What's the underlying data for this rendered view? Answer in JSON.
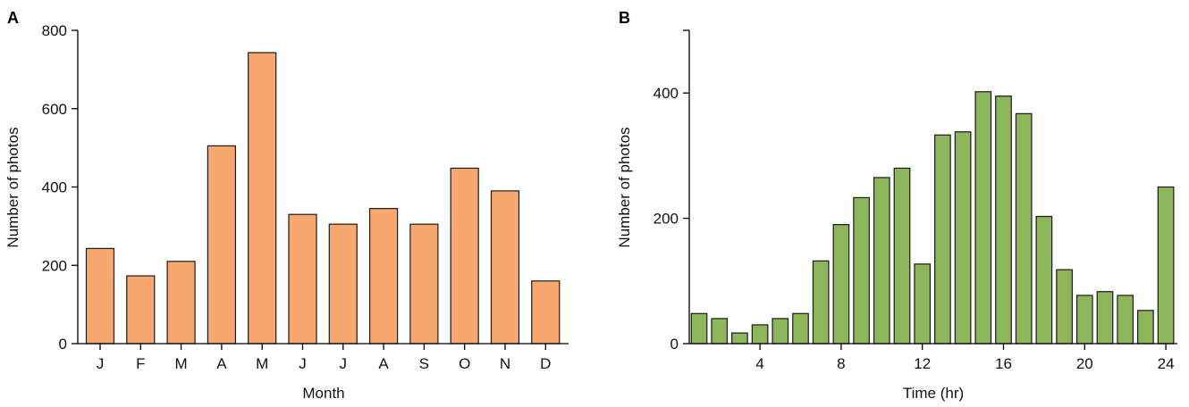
{
  "colors": {
    "panel_a_bar": "#f6a86f",
    "panel_b_bar": "#8db65a",
    "axis": "#000000"
  },
  "chart_data": [
    {
      "panel_label": "A",
      "type": "bar",
      "xlabel": "Month",
      "ylabel": "Number of photos",
      "ylim": [
        0,
        800
      ],
      "yticks": [
        0,
        200,
        400,
        600,
        800
      ],
      "categories": [
        "J",
        "F",
        "M",
        "A",
        "M",
        "J",
        "J",
        "A",
        "S",
        "O",
        "N",
        "D"
      ],
      "values": [
        243,
        173,
        210,
        505,
        743,
        330,
        305,
        345,
        305,
        448,
        390,
        160
      ],
      "grid": false
    },
    {
      "panel_label": "B",
      "type": "bar",
      "xlabel": "Time (hr)",
      "ylabel": "Number of photos",
      "ylim": [
        0,
        500
      ],
      "yticks": [
        0,
        200,
        400
      ],
      "xticks": [
        4,
        8,
        12,
        16,
        20,
        24
      ],
      "x": [
        1,
        2,
        3,
        4,
        5,
        6,
        7,
        8,
        9,
        10,
        11,
        12,
        13,
        14,
        15,
        16,
        17,
        18,
        19,
        20,
        21,
        22,
        23,
        24
      ],
      "values": [
        48,
        40,
        17,
        30,
        40,
        48,
        132,
        190,
        233,
        265,
        280,
        127,
        333,
        338,
        402,
        395,
        367,
        203,
        118,
        77,
        83,
        77,
        53,
        250
      ],
      "grid": false
    }
  ]
}
